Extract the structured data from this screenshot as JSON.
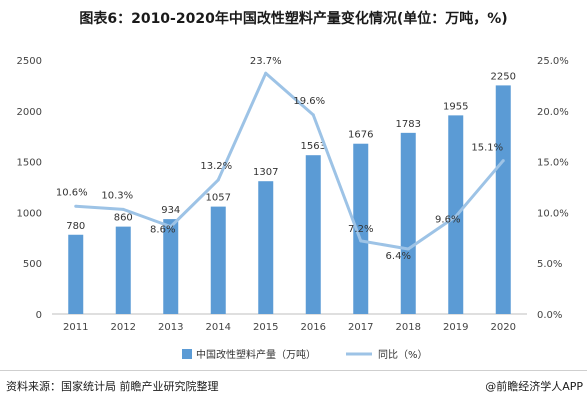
{
  "chart_data": {
    "type": "bar",
    "title": "图表6：2010-2020年中国改性塑料产量变化情况(单位：万吨，%)",
    "categories": [
      "2011",
      "2012",
      "2013",
      "2014",
      "2015",
      "2016",
      "2017",
      "2018",
      "2019",
      "2020"
    ],
    "series": [
      {
        "name": "中国改性塑料产量（万吨）",
        "type": "bar",
        "axis": "left",
        "color": "#5b9bd5",
        "values": [
          780,
          860,
          934,
          1057,
          1307,
          1563,
          1676,
          1783,
          1955,
          2250
        ],
        "labels": [
          "780",
          "860",
          "934",
          "1057",
          "1307",
          "1563",
          "1676",
          "1783",
          "1955",
          "2250"
        ]
      },
      {
        "name": "同比（%）",
        "type": "line",
        "axis": "right",
        "color": "#9dc3e6",
        "values": [
          10.6,
          10.3,
          8.6,
          13.2,
          23.7,
          19.6,
          7.2,
          6.4,
          9.6,
          15.1
        ],
        "labels": [
          "10.6%",
          "10.3%",
          "8.6%",
          "13.2%",
          "23.7%",
          "19.6%",
          "7.2%",
          "6.4%",
          "9.6%",
          "15.1%"
        ]
      }
    ],
    "y_left": {
      "lim": [
        0,
        2500
      ],
      "ticks": [
        "0",
        "500",
        "1000",
        "1500",
        "2000",
        "2500"
      ],
      "values": [
        0,
        500,
        1000,
        1500,
        2000,
        2500
      ]
    },
    "y_right": {
      "lim": [
        0,
        25
      ],
      "ticks": [
        "0.0%",
        "5.0%",
        "10.0%",
        "15.0%",
        "20.0%",
        "25.0%"
      ],
      "values": [
        0,
        5,
        10,
        15,
        20,
        25
      ]
    },
    "grid": false,
    "legend_position": "bottom"
  },
  "footer": {
    "source": "资料来源：国家统计局 前瞻产业研究院整理",
    "credit": "@前瞻经济学人APP"
  }
}
